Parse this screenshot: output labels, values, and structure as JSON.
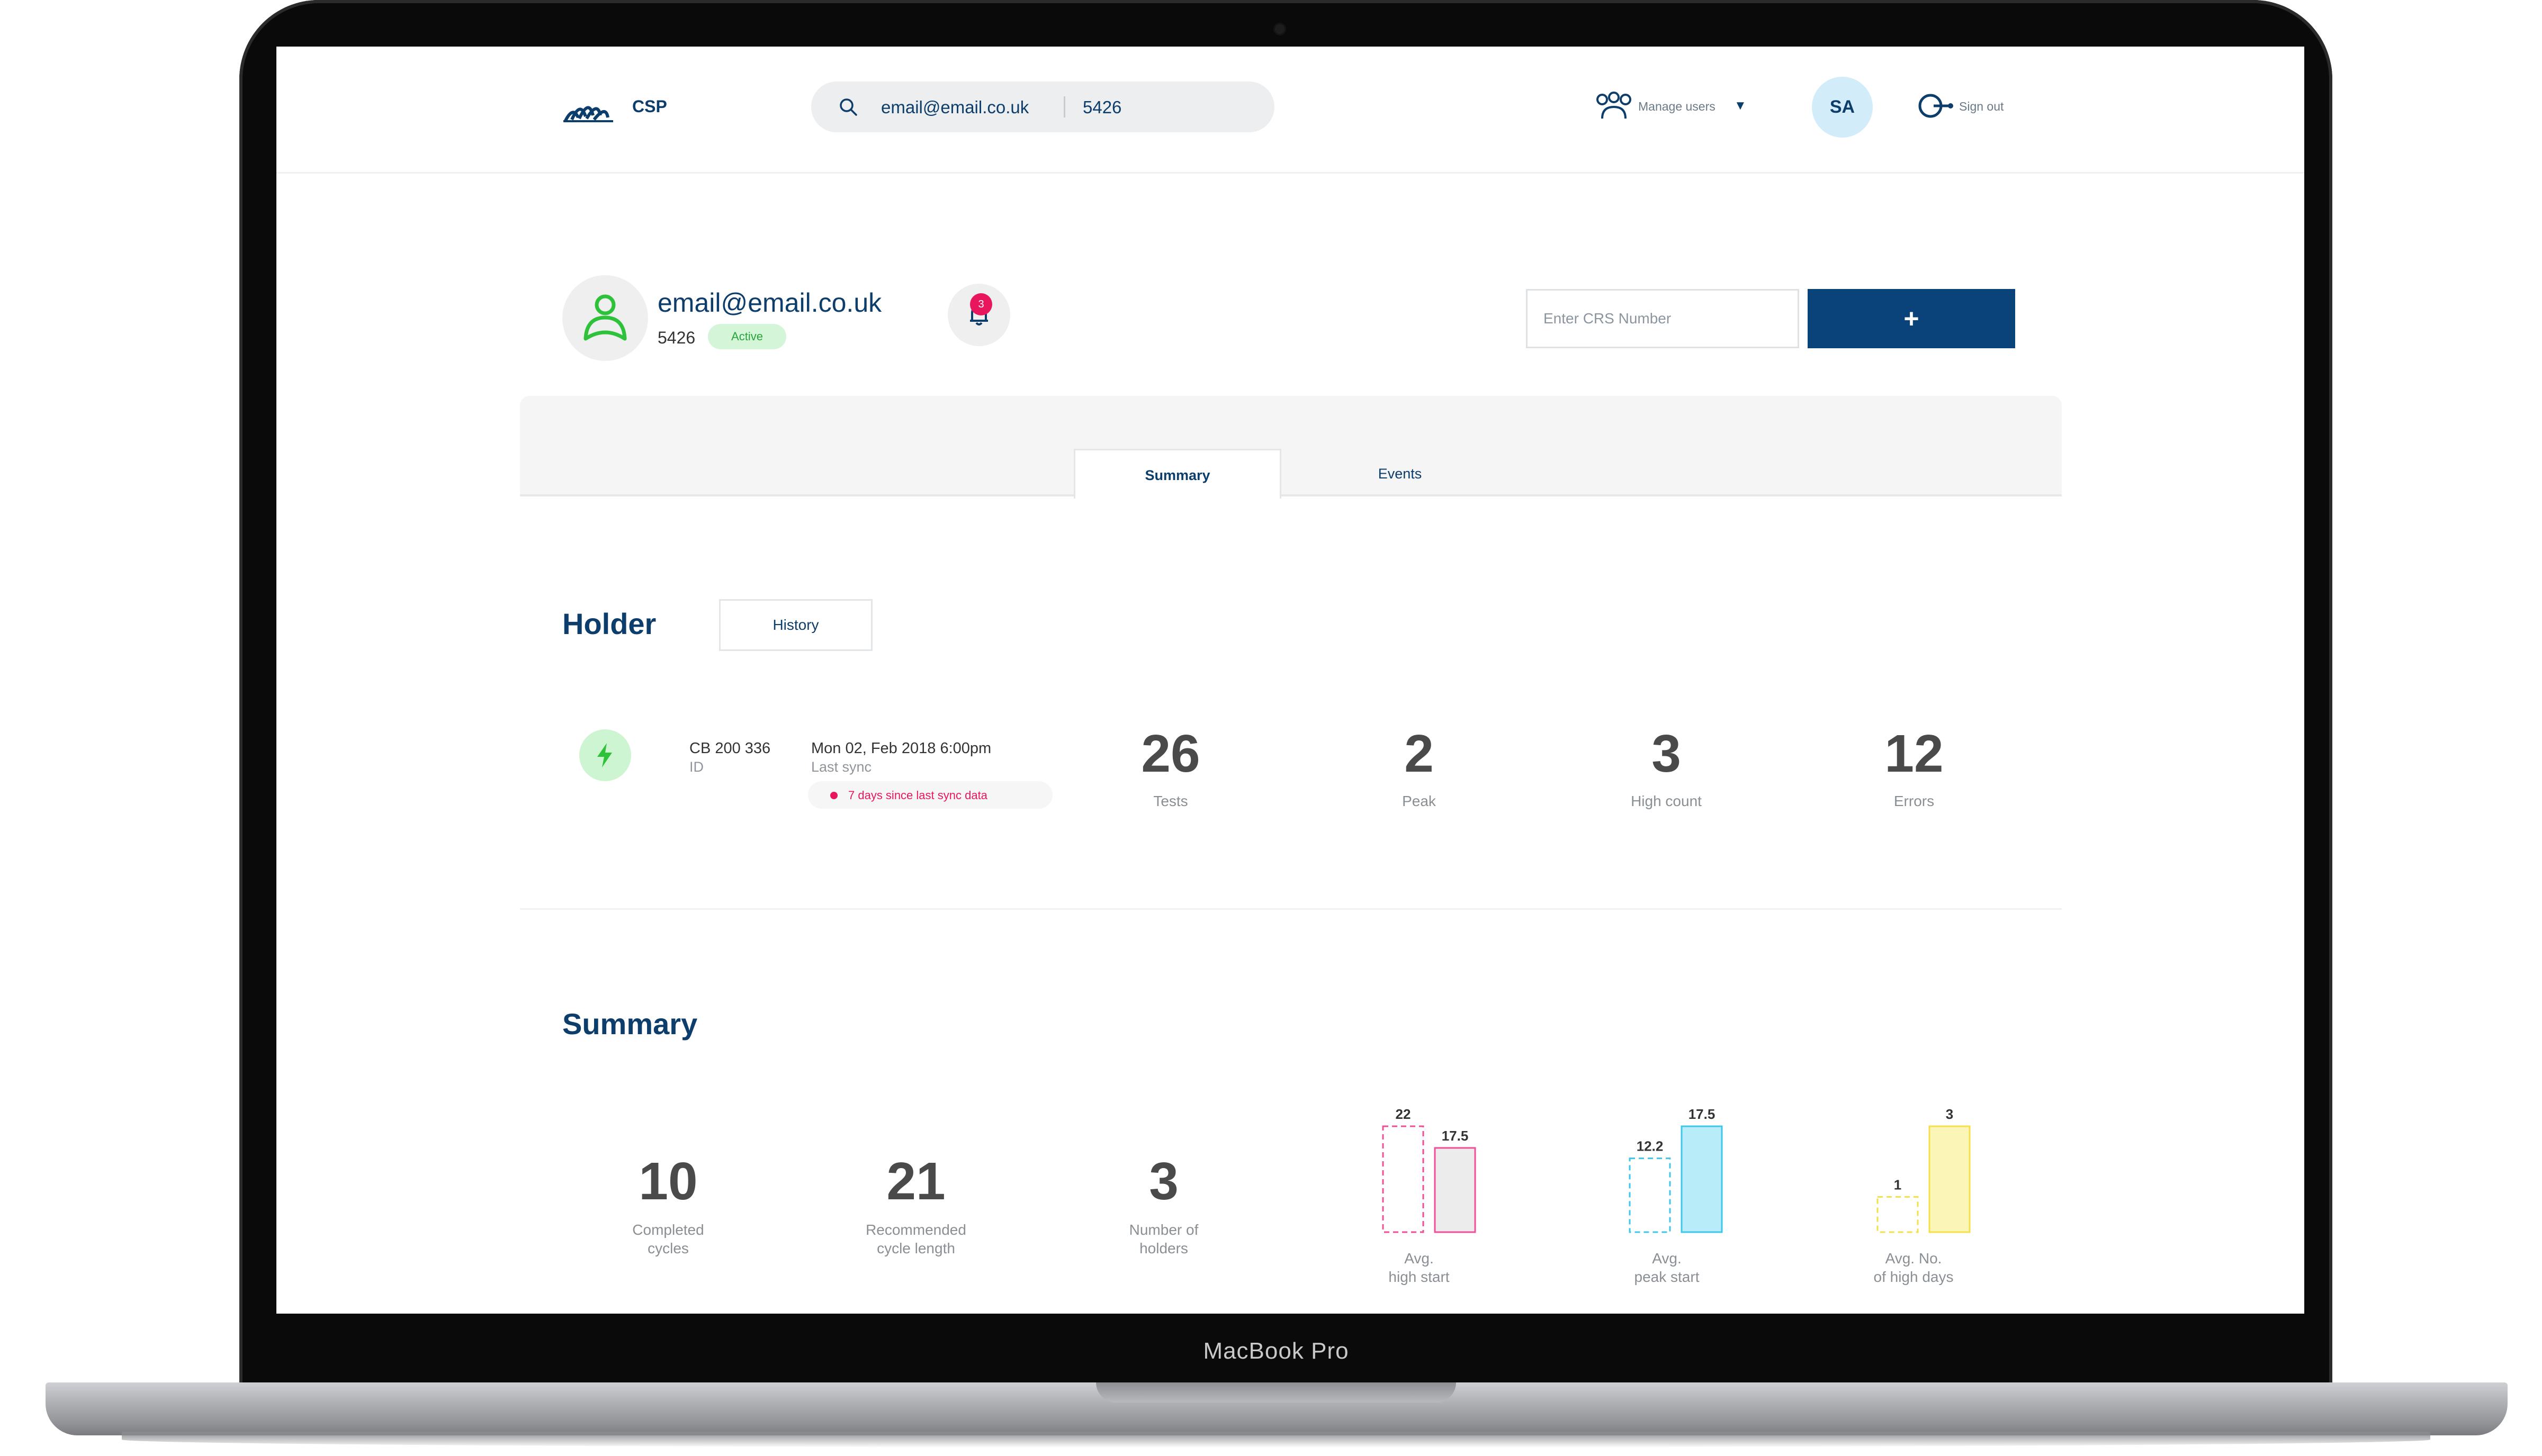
{
  "device": {
    "label": "MacBook Pro"
  },
  "header": {
    "brand": "CSP",
    "search": {
      "email": "email@email.co.uk",
      "id": "5426"
    },
    "manage_users": "Manage users",
    "avatar_initials": "SA",
    "sign_out": "Sign out"
  },
  "profile": {
    "email": "email@email.co.uk",
    "id": "5426",
    "status": "Active",
    "notification_count": "3",
    "crs_placeholder": "Enter CRS Number",
    "add_label": "+"
  },
  "tabs": [
    {
      "label": "Summary",
      "active": true
    },
    {
      "label": "Events",
      "active": false
    }
  ],
  "holder": {
    "title": "Holder",
    "history_label": "History",
    "device_id": "CB 200 336",
    "device_id_label": "ID",
    "sync_date": "Mon 02, Feb 2018 6:00pm",
    "sync_label": "Last sync",
    "sync_warning": "7 days since last sync data",
    "stats": [
      {
        "value": "26",
        "label": "Tests"
      },
      {
        "value": "2",
        "label": "Peak"
      },
      {
        "value": "3",
        "label": "High count"
      },
      {
        "value": "12",
        "label": "Errors"
      }
    ]
  },
  "summary": {
    "title": "Summary",
    "stats": [
      {
        "value": "10",
        "label_1": "Completed",
        "label_2": "cycles"
      },
      {
        "value": "21",
        "label_1": "Recommended",
        "label_2": "cycle length"
      },
      {
        "value": "3",
        "label_1": "Number of",
        "label_2": "holders"
      }
    ]
  },
  "chart_data": [
    {
      "type": "bar",
      "series": [
        {
          "values": [
            22
          ],
          "style": "dashed",
          "color": "#ee4f97"
        },
        {
          "values": [
            17.5
          ],
          "style": "filled",
          "fill": "#ececec",
          "color": "#ee4f97"
        }
      ],
      "data_labels": [
        "22",
        "17.5"
      ],
      "label_1": "Avg.",
      "label_2": "high start"
    },
    {
      "type": "bar",
      "series": [
        {
          "values": [
            12.2
          ],
          "style": "dashed",
          "color": "#3fc6e8"
        },
        {
          "values": [
            17.5
          ],
          "style": "filled",
          "fill": "#b8ecf8",
          "color": "#3fc6e8"
        }
      ],
      "data_labels": [
        "12.2",
        "17.5"
      ],
      "label_1": "Avg.",
      "label_2": "peak start"
    },
    {
      "type": "bar",
      "series": [
        {
          "values": [
            1
          ],
          "style": "dashed",
          "color": "#f3e04c"
        },
        {
          "values": [
            3
          ],
          "style": "filled",
          "fill": "#fbf6b7",
          "color": "#f3e04c"
        }
      ],
      "data_labels": [
        "1",
        "3"
      ],
      "label_1": "Avg. No.",
      "label_2": "of high days"
    }
  ],
  "colors": {
    "navy": "#0c3d6b",
    "primary_button": "#0a4379",
    "active_green": "#26a43a",
    "alert_pink": "#e8175d"
  }
}
